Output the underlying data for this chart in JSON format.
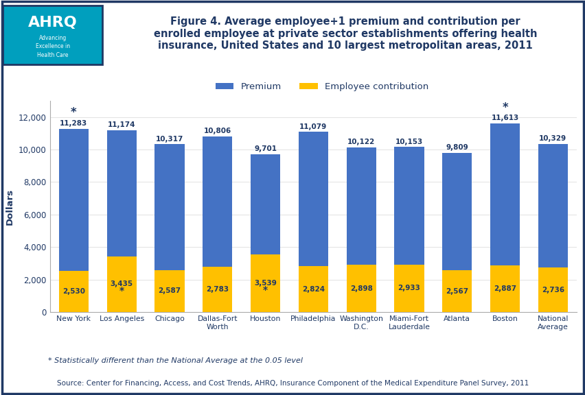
{
  "categories": [
    "New York",
    "Los Angeles",
    "Chicago",
    "Dallas-Fort\nWorth",
    "Houston",
    "Philadelphia",
    "Washington\nD.C.",
    "Miami-Fort\nLauderdale",
    "Atlanta",
    "Boston",
    "National\nAverage"
  ],
  "total_premium": [
    11283,
    11174,
    10317,
    10806,
    9701,
    11079,
    10122,
    10153,
    9809,
    11613,
    10329
  ],
  "contribution": [
    2530,
    3435,
    2587,
    2783,
    3539,
    2824,
    2898,
    2933,
    2567,
    2887,
    2736
  ],
  "statistically_diff": [
    true,
    true,
    false,
    false,
    true,
    false,
    false,
    false,
    false,
    true,
    false
  ],
  "bar_color_premium": "#4472C4",
  "bar_color_contribution": "#FFC000",
  "title_line1": "Figure 4. Average employee+1 premium and contribution per",
  "title_line2": "enrolled employee at private sector establishments offering health",
  "title_line3": "insurance, United States and 10 largest metropolitan areas, 2011",
  "ylabel": "Dollars",
  "ylim": [
    0,
    13000
  ],
  "yticks": [
    0,
    2000,
    4000,
    6000,
    8000,
    10000,
    12000
  ],
  "legend_labels": [
    "Premium",
    "Employee contribution"
  ],
  "footnote": "* Statistically different than the National Average at the 0.05 level",
  "source": "Source: Center for Financing, Access, and Cost Trends, AHRQ, Insurance Component of the Medical Expenditure Panel Survey, 2011",
  "title_color": "#1F3864",
  "text_color": "#1F3864",
  "divider_color": "#1F3864",
  "background_color": "#FFFFFF",
  "logo_bg_color": "#009FBE",
  "logo_border_color": "#1F3864"
}
